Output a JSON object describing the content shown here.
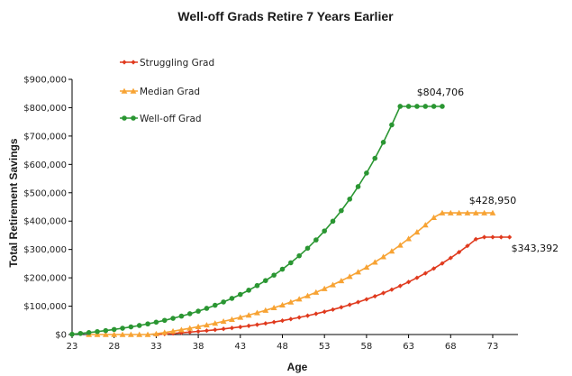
{
  "chart_data": {
    "type": "line",
    "title": "Well-off Grads Retire 7 Years Earlier",
    "xlabel": "Age",
    "ylabel": "Total Retirement Savings",
    "xlim": [
      23,
      76
    ],
    "ylim": [
      0,
      900000
    ],
    "x_ticks": [
      23,
      28,
      33,
      38,
      43,
      48,
      53,
      58,
      63,
      68,
      73
    ],
    "y_ticks": [
      0,
      100000,
      200000,
      300000,
      400000,
      500000,
      600000,
      700000,
      800000,
      900000
    ],
    "y_tick_labels": [
      "$0",
      "$100,000",
      "$200,000",
      "$300,000",
      "$400,000",
      "$500,000",
      "$600,000",
      "$700,000",
      "$800,000",
      "$900,000"
    ],
    "grid": false,
    "legend_position": "top-left",
    "series": [
      {
        "name": "Struggling Grad",
        "color": "#e03a1e",
        "marker": "diamond",
        "start_age": 33,
        "end_age": 75,
        "end_value": 343392,
        "end_label": "$343,392",
        "values": [
          0,
          1900,
          3900,
          6100,
          8500,
          11000,
          13700,
          16600,
          19800,
          23100,
          26700,
          30600,
          34700,
          39100,
          43900,
          49000,
          54400,
          60300,
          66500,
          73200,
          80400,
          88000,
          96200,
          104900,
          114300,
          124200,
          134900,
          146300,
          158400,
          171400,
          185300,
          200100,
          215900,
          232800,
          250800,
          270100,
          290700,
          312700,
          336200,
          343392,
          343392,
          343392,
          343392
        ]
      },
      {
        "name": "Median Grad",
        "color": "#f7a334",
        "marker": "triangle",
        "start_age": 25,
        "end_age": 73,
        "end_value": 428950,
        "end_label": "$428,950",
        "values": [
          0,
          0,
          0,
          0,
          0,
          0,
          0,
          0,
          2500,
          6900,
          11700,
          16700,
          22000,
          27600,
          33500,
          39700,
          46300,
          53300,
          60600,
          68400,
          76600,
          85300,
          94500,
          104100,
          114400,
          125200,
          136700,
          148800,
          161600,
          175100,
          189400,
          204500,
          220500,
          237400,
          255300,
          274200,
          294200,
          315300,
          337700,
          361300,
          386300,
          412700,
          428950,
          428950,
          428950,
          428950,
          428950,
          428950,
          428950
        ]
      },
      {
        "name": "Well-off Grad",
        "color": "#2a9632",
        "marker": "circle",
        "start_age": 23,
        "end_age": 67,
        "end_value": 804706,
        "end_label": "$804,706",
        "values": [
          1000,
          3900,
          6900,
          10300,
          13900,
          17900,
          22200,
          26800,
          31900,
          37500,
          43500,
          50000,
          57100,
          64900,
          73300,
          82400,
          92300,
          103100,
          114800,
          127500,
          141300,
          156300,
          172600,
          190300,
          209500,
          230400,
          253100,
          277700,
          304500,
          333600,
          365200,
          399600,
          436900,
          477500,
          521600,
          569500,
          621500,
          678000,
          739400,
          804706,
          804706,
          804706,
          804706,
          804706,
          804706
        ]
      }
    ]
  }
}
